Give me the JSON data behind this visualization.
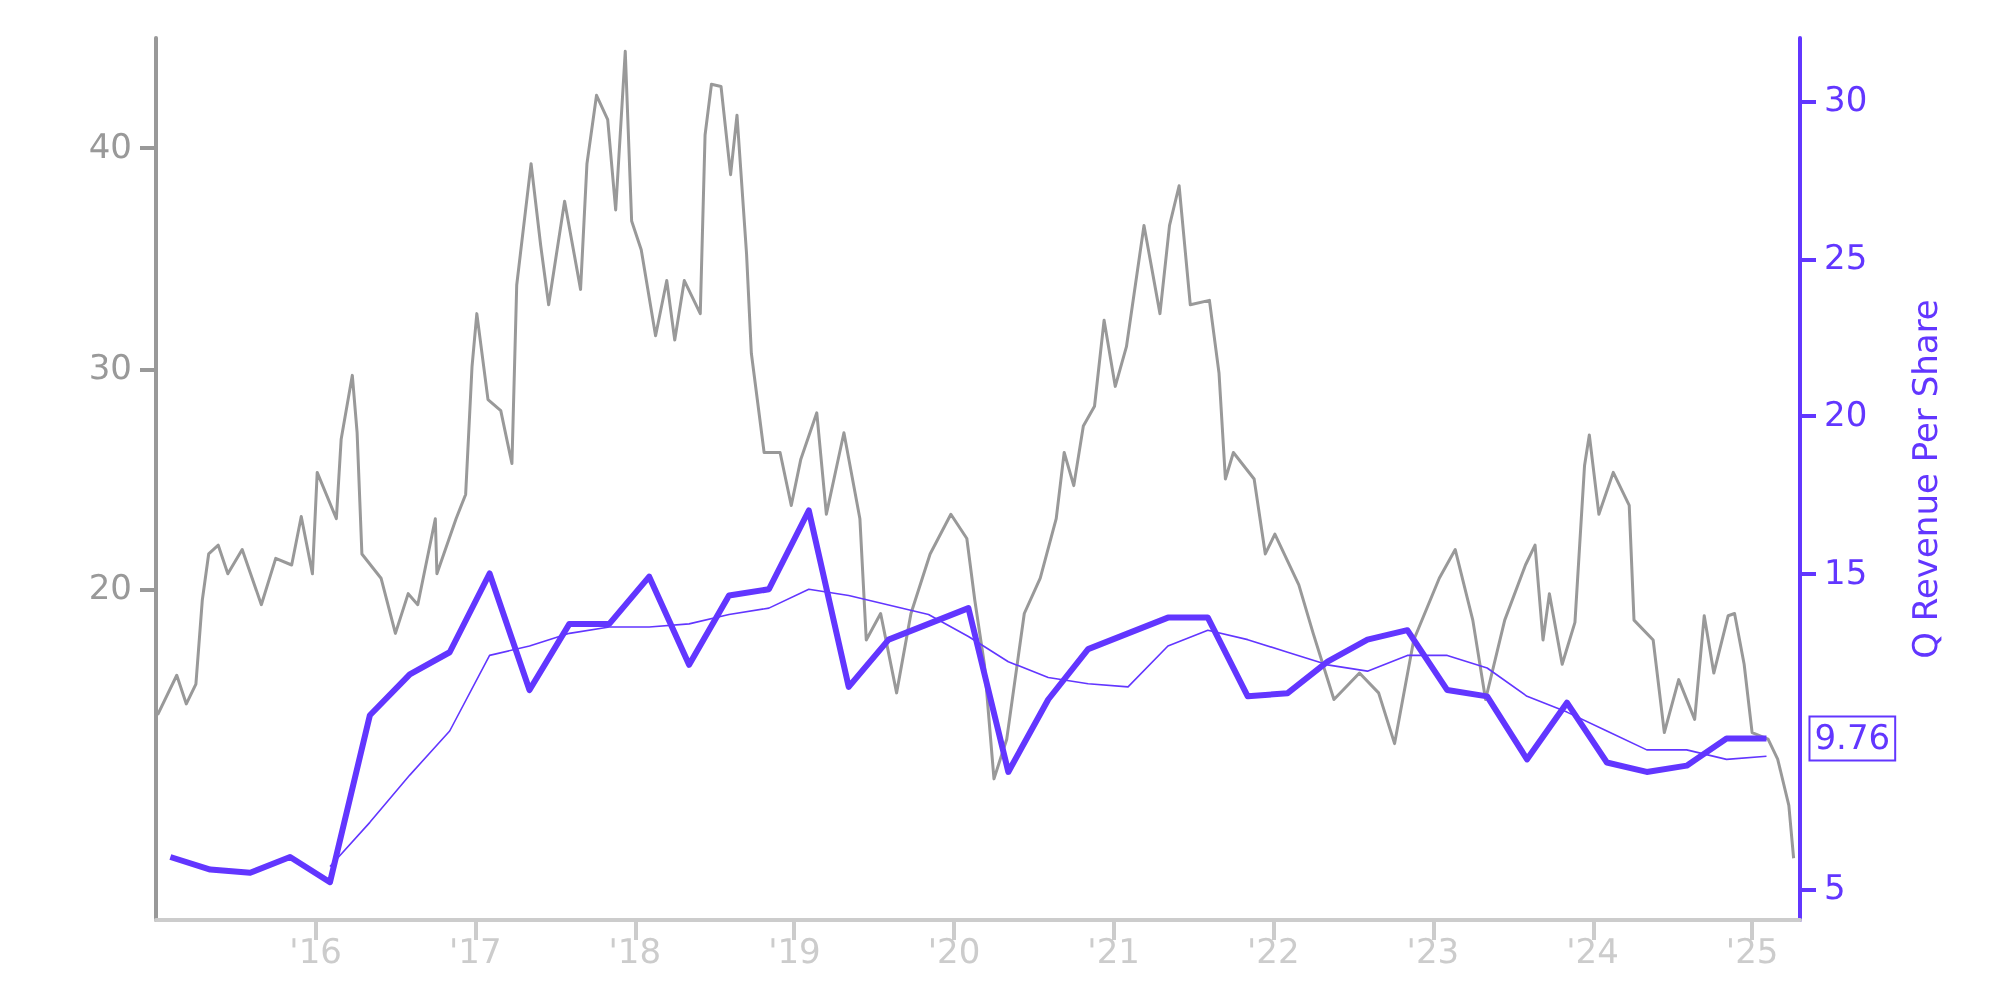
{
  "chart_data": {
    "type": "line",
    "y2label": "Q Revenue Per Share",
    "xlim": [
      2015,
      2025.3
    ],
    "xticks": [
      {
        "value": 2016,
        "label": "'16"
      },
      {
        "value": 2017,
        "label": "'17"
      },
      {
        "value": 2018,
        "label": "'18"
      },
      {
        "value": 2019,
        "label": "'19"
      },
      {
        "value": 2020,
        "label": "'20"
      },
      {
        "value": 2021,
        "label": "'21"
      },
      {
        "value": 2022,
        "label": "'22"
      },
      {
        "value": 2023,
        "label": "'23"
      },
      {
        "value": 2024,
        "label": "'24"
      },
      {
        "value": 2025,
        "label": "'25"
      }
    ],
    "ylim": [
      5,
      45
    ],
    "yticks": [
      20,
      30,
      40
    ],
    "y2lim": [
      4,
      32
    ],
    "y2ticks": [
      5,
      15,
      20,
      25,
      30
    ],
    "grid": false,
    "marker": "none",
    "line_style": "solid",
    "series": [
      {
        "color": "#999999",
        "axis": "y",
        "x": [
          2015.01,
          2015.13,
          2015.19,
          2015.25,
          2015.29,
          2015.33,
          2015.39,
          2015.45,
          2015.54,
          2015.66,
          2015.75,
          2015.85,
          2015.91,
          2015.98,
          2016.01,
          2016.13,
          2016.16,
          2016.23,
          2016.26,
          2016.29,
          2016.41,
          2016.5,
          2016.58,
          2016.64,
          2016.75,
          2016.76,
          2016.88,
          2016.94,
          2016.98,
          2017.01,
          2017.08,
          2017.16,
          2017.23,
          2017.26,
          2017.35,
          2017.41,
          2017.46,
          2017.56,
          2017.66,
          2017.7,
          2017.76,
          2017.83,
          2017.88,
          2017.94,
          2017.98,
          2018.04,
          2018.13,
          2018.2,
          2018.25,
          2018.31,
          2018.41,
          2018.44,
          2018.48,
          2018.54,
          2018.6,
          2018.64,
          2018.7,
          2018.73,
          2018.81,
          2018.91,
          2018.98,
          2019.04,
          2019.14,
          2019.2,
          2019.31,
          2019.41,
          2019.45,
          2019.54,
          2019.64,
          2019.73,
          2019.85,
          2019.98,
          2020.08,
          2020.13,
          2020.19,
          2020.25,
          2020.33,
          2020.44,
          2020.54,
          2020.64,
          2020.69,
          2020.75,
          2020.81,
          2020.88,
          2020.94,
          2021.01,
          2021.08,
          2021.19,
          2021.29,
          2021.35,
          2021.41,
          2021.48,
          2021.6,
          2021.66,
          2021.7,
          2021.75,
          2021.88,
          2021.95,
          2022.01,
          2022.16,
          2022.25,
          2022.38,
          2022.54,
          2022.66,
          2022.76,
          2022.88,
          2023.04,
          2023.14,
          2023.25,
          2023.33,
          2023.45,
          2023.58,
          2023.64,
          2023.69,
          2023.73,
          2023.81,
          2023.89,
          2023.95,
          2023.98,
          2024.04,
          2024.13,
          2024.23,
          2024.26,
          2024.38,
          2024.45,
          2024.54,
          2024.64,
          2024.7,
          2024.76,
          2024.85,
          2024.89,
          2024.95,
          2025.0,
          2025.1,
          2025.16,
          2025.23,
          2025.26
        ],
        "values": [
          14.3,
          16.1,
          14.8,
          15.7,
          19.5,
          21.6,
          22.0,
          20.7,
          21.8,
          19.3,
          21.4,
          21.1,
          23.3,
          20.7,
          25.3,
          23.2,
          26.8,
          29.7,
          27.1,
          21.6,
          20.5,
          18.0,
          19.8,
          19.3,
          23.2,
          20.7,
          23.2,
          24.3,
          30.1,
          32.5,
          28.6,
          28.1,
          25.7,
          33.8,
          39.3,
          35.6,
          32.9,
          37.6,
          33.6,
          39.3,
          42.4,
          41.3,
          37.2,
          44.4,
          36.7,
          35.4,
          31.5,
          34.0,
          31.3,
          34.0,
          32.5,
          40.6,
          42.9,
          42.8,
          38.8,
          41.5,
          35.2,
          30.7,
          26.2,
          26.2,
          23.8,
          25.9,
          28.0,
          23.4,
          27.1,
          23.2,
          17.7,
          18.9,
          15.3,
          18.9,
          21.6,
          23.4,
          22.3,
          19.5,
          16.6,
          11.4,
          13.2,
          18.9,
          20.5,
          23.2,
          26.2,
          24.7,
          27.4,
          28.3,
          32.2,
          29.2,
          31.0,
          36.5,
          32.5,
          36.5,
          38.3,
          32.9,
          33.1,
          29.8,
          25.0,
          26.2,
          25.0,
          21.6,
          22.5,
          20.2,
          18.0,
          15.0,
          16.2,
          15.3,
          13.0,
          17.7,
          20.5,
          21.8,
          18.6,
          15.0,
          18.6,
          21.1,
          22.0,
          17.7,
          19.8,
          16.6,
          18.5,
          25.6,
          27.0,
          23.4,
          25.3,
          23.8,
          18.6,
          17.7,
          13.5,
          15.9,
          14.1,
          18.8,
          16.2,
          18.8,
          18.9,
          16.6,
          13.5,
          13.2,
          12.3,
          10.2,
          7.8
        ]
      },
      {
        "color": "#6236ff",
        "axis": "y2",
        "x": [
          2016.09,
          2016.34,
          2016.59,
          2016.84,
          2017.09,
          2017.34,
          2017.59,
          2017.84,
          2018.09,
          2018.34,
          2018.59,
          2018.84,
          2019.09,
          2019.34,
          2019.59,
          2019.84,
          2020.09,
          2020.34,
          2020.59,
          2020.84,
          2021.09,
          2021.34,
          2021.59,
          2021.84,
          2022.09,
          2022.34,
          2022.59,
          2022.84,
          2023.09,
          2023.34,
          2023.59,
          2023.84,
          2024.09,
          2024.34,
          2024.59,
          2024.84,
          2025.09
        ],
        "values": [
          5.7,
          7.1,
          8.6,
          10.0,
          12.4,
          12.7,
          13.1,
          13.3,
          13.3,
          13.4,
          13.7,
          13.9,
          14.5,
          14.3,
          14.0,
          13.7,
          13.0,
          12.2,
          11.7,
          11.5,
          11.4,
          12.7,
          13.2,
          12.9,
          12.5,
          12.1,
          11.9,
          12.4,
          12.4,
          12.0,
          11.1,
          10.6,
          10.0,
          9.4,
          9.4,
          9.1,
          9.2
        ]
      },
      {
        "color": "#6236ff",
        "axis": "y2",
        "x": [
          2015.09,
          2015.34,
          2015.59,
          2015.84,
          2016.09,
          2016.34,
          2016.59,
          2016.84,
          2017.09,
          2017.34,
          2017.59,
          2017.84,
          2018.09,
          2018.34,
          2018.59,
          2018.84,
          2019.09,
          2019.34,
          2019.59,
          2019.84,
          2020.09,
          2020.34,
          2020.59,
          2020.84,
          2021.09,
          2021.34,
          2021.59,
          2021.84,
          2022.09,
          2022.34,
          2022.59,
          2022.84,
          2023.09,
          2023.34,
          2023.59,
          2023.84,
          2024.09,
          2024.34,
          2024.59,
          2024.84,
          2025.09
        ],
        "values": [
          6.0,
          5.6,
          5.5,
          6.0,
          5.2,
          10.5,
          11.8,
          12.5,
          15.0,
          11.3,
          13.4,
          13.4,
          14.9,
          12.1,
          14.3,
          14.5,
          17.0,
          11.4,
          12.9,
          13.4,
          13.9,
          8.7,
          11.0,
          12.6,
          13.1,
          13.6,
          13.6,
          11.1,
          11.2,
          12.2,
          12.9,
          13.2,
          11.3,
          11.1,
          9.1,
          10.9,
          9.0,
          8.7,
          8.9,
          9.76,
          9.76
        ],
        "value_labels": [
          null,
          null,
          null,
          null,
          null,
          null,
          null,
          null,
          null,
          null,
          null,
          null,
          null,
          null,
          null,
          null,
          null,
          null,
          null,
          null,
          null,
          null,
          null,
          null,
          null,
          null,
          null,
          null,
          null,
          null,
          null,
          null,
          null,
          null,
          null,
          null,
          null,
          null,
          null,
          null,
          "9.76"
        ]
      }
    ]
  }
}
